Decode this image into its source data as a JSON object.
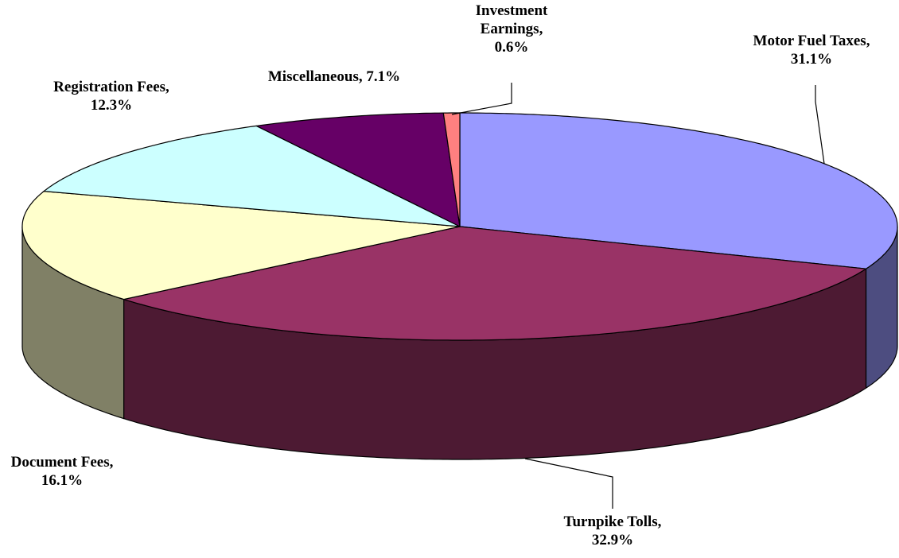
{
  "chart_data": {
    "type": "pie3d",
    "categories": [
      "Motor Fuel Taxes,",
      "Turnpike Tolls,",
      "Document Fees,",
      "Registration Fees,",
      "Miscellaneous,",
      "Investment Earnings,"
    ],
    "values": [
      31.1,
      32.9,
      16.1,
      12.3,
      7.1,
      0.6
    ],
    "value_labels": [
      "31.1%",
      "32.9%",
      "16.1%",
      "12.3%",
      "7.1%",
      "0.6%"
    ],
    "colors": [
      "#9999ff",
      "#993366",
      "#ffffcc",
      "#ccffff",
      "#660066",
      "#ff8080"
    ]
  }
}
